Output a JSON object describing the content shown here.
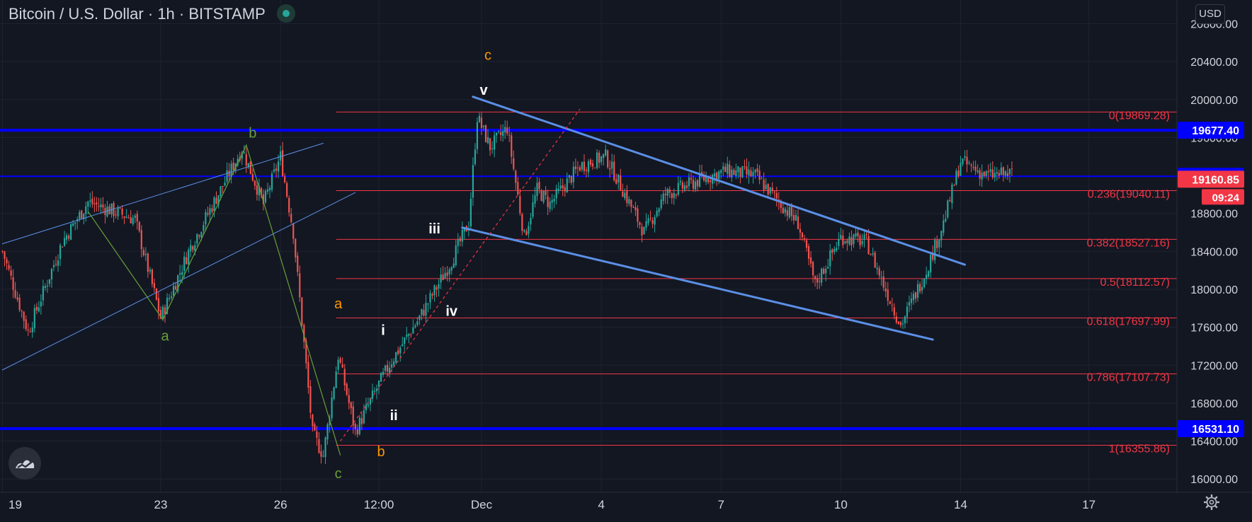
{
  "header": {
    "symbol": "Bitcoin / U.S. Dollar",
    "interval": "1h",
    "exchange": "BITSTAMP",
    "separator": "·"
  },
  "currency_button": "USD",
  "colors": {
    "background": "#131722",
    "grid": "#1f2330",
    "up_candle": "#26a69a",
    "down_candle": "#ef5350",
    "fib_line": "#f23645",
    "horizontal_level": "#0000ff",
    "trendline": "#5b8fe6",
    "orange_label": "#ff9800",
    "green_label": "#689f38",
    "white_label": "#ffffff",
    "last_price_tag": "#f23645",
    "countdown_tag": "#f23645"
  },
  "icons": {
    "logo": "tradingview-logo-icon",
    "settings": "gear-icon",
    "status": "market-status-dot-icon"
  },
  "chart_data": {
    "type": "candlestick",
    "ylim": [
      15860,
      21050
    ],
    "y_ticks": [
      {
        "value": 20800,
        "label": "20800.00"
      },
      {
        "value": 20400,
        "label": "20400.00"
      },
      {
        "value": 20000,
        "label": "20000.00"
      },
      {
        "value": 19600,
        "label": "19600.00"
      },
      {
        "value": 18800,
        "label": "18800.00"
      },
      {
        "value": 18400,
        "label": "18400.00"
      },
      {
        "value": 18000,
        "label": "18000.00"
      },
      {
        "value": 17600,
        "label": "17600.00"
      },
      {
        "value": 17200,
        "label": "17200.00"
      },
      {
        "value": 16800,
        "label": "16800.00"
      },
      {
        "value": 16400,
        "label": "16400.00"
      },
      {
        "value": 16000,
        "label": "16000.00"
      }
    ],
    "x_ticks": [
      {
        "bar": 0,
        "label": "19"
      },
      {
        "bar": 74,
        "label": "23"
      },
      {
        "bar": 130,
        "label": "26"
      },
      {
        "bar": 176,
        "label": "12:00"
      },
      {
        "bar": 224,
        "label": "Dec"
      },
      {
        "bar": 280,
        "label": "4"
      },
      {
        "bar": 336,
        "label": "7"
      },
      {
        "bar": 392,
        "label": "10"
      },
      {
        "bar": 448,
        "label": "14"
      },
      {
        "bar": 508,
        "label": "17"
      }
    ],
    "price_path": [
      [
        0,
        18400
      ],
      [
        12,
        17550
      ],
      [
        28,
        18500
      ],
      [
        40,
        18920
      ],
      [
        62,
        18740
      ],
      [
        74,
        17700
      ],
      [
        88,
        18450
      ],
      [
        112,
        19480
      ],
      [
        122,
        18900
      ],
      [
        130,
        19400
      ],
      [
        136,
        18600
      ],
      [
        145,
        16480
      ],
      [
        150,
        16250
      ],
      [
        157,
        17300
      ],
      [
        165,
        16500
      ],
      [
        176,
        17000
      ],
      [
        182,
        17250
      ],
      [
        195,
        17700
      ],
      [
        210,
        18300
      ],
      [
        218,
        18700
      ],
      [
        222,
        19820
      ],
      [
        228,
        19500
      ],
      [
        236,
        19700
      ],
      [
        244,
        18550
      ],
      [
        250,
        19050
      ],
      [
        256,
        18900
      ],
      [
        270,
        19300
      ],
      [
        282,
        19400
      ],
      [
        290,
        19050
      ],
      [
        300,
        18600
      ],
      [
        310,
        19000
      ],
      [
        326,
        19150
      ],
      [
        338,
        19250
      ],
      [
        352,
        19200
      ],
      [
        362,
        18950
      ],
      [
        372,
        18700
      ],
      [
        380,
        18050
      ],
      [
        392,
        18550
      ],
      [
        404,
        18500
      ],
      [
        412,
        18050
      ],
      [
        420,
        17620
      ],
      [
        432,
        18200
      ],
      [
        440,
        18700
      ],
      [
        448,
        19350
      ],
      [
        460,
        19200
      ],
      [
        472,
        19220
      ]
    ],
    "seed": 7,
    "fibonacci": {
      "start_bar": 156,
      "levels": [
        {
          "ratio": "0",
          "value": 19869.28,
          "label": "0(19869.28)"
        },
        {
          "ratio": "0.236",
          "value": 19040.11,
          "label": "0.236(19040.11)"
        },
        {
          "ratio": "0.382",
          "value": 18527.16,
          "label": "0.382(18527.16)"
        },
        {
          "ratio": "0.5",
          "value": 18112.57,
          "label": "0.5(18112.57)"
        },
        {
          "ratio": "0.618",
          "value": 17697.99,
          "label": "0.618(17697.99)"
        },
        {
          "ratio": "0.786",
          "value": 17107.73,
          "label": "0.786(17107.73)"
        },
        {
          "ratio": "1",
          "value": 16355.86,
          "label": "1(16355.86)"
        }
      ]
    },
    "horizontal_levels": [
      {
        "value": 19677.4,
        "label": "19677.40"
      },
      {
        "value": 19191.08,
        "label": "19191.08"
      },
      {
        "value": 16531.1,
        "label": "16531.10"
      }
    ],
    "last_price": {
      "value": 19160.85,
      "label": "19160.85",
      "countdown": "09:24"
    },
    "trendlines": [
      {
        "name": "upper-channel-line",
        "from": [
          0,
          18480
        ],
        "to": [
          150,
          19540
        ],
        "width": 1
      },
      {
        "name": "lower-channel-line",
        "from": [
          0,
          17150
        ],
        "to": [
          165,
          19020
        ],
        "width": 1
      },
      {
        "name": "upper-wedge-line",
        "from": [
          220,
          20030
        ],
        "to": [
          450,
          18260
        ],
        "width": 3
      },
      {
        "name": "lower-wedge-line",
        "from": [
          215,
          18650
        ],
        "to": [
          435,
          17470
        ],
        "width": 3
      }
    ],
    "wave_paths": [
      {
        "name": "abc-wave-path",
        "color": "#689f38",
        "points": [
          [
            40,
            18820
          ],
          [
            75,
            17680
          ],
          [
            114,
            19520
          ],
          [
            158,
            16250
          ]
        ]
      },
      {
        "name": "impulse-dotted-path",
        "color": "#f23645",
        "dashed": true,
        "points": [
          [
            158,
            16400
          ],
          [
            270,
            19900
          ]
        ]
      }
    ],
    "wave_labels": [
      {
        "text": "b",
        "bar": 117,
        "value": 19600,
        "color": "#689f38"
      },
      {
        "text": "a",
        "bar": 76,
        "value": 17460,
        "color": "#689f38"
      },
      {
        "text": "c",
        "bar": 157,
        "value": 16010,
        "color": "#689f38"
      },
      {
        "text": "c",
        "bar": 227,
        "value": 20420,
        "color": "#ff9800"
      },
      {
        "text": "a",
        "bar": 157,
        "value": 17800,
        "color": "#ff9800"
      },
      {
        "text": "b",
        "bar": 177,
        "value": 16240,
        "color": "#ff9800"
      },
      {
        "text": "v",
        "bar": 225,
        "value": 20050,
        "color": "#ffffff"
      },
      {
        "text": "iii",
        "bar": 202,
        "value": 18590,
        "color": "#ffffff"
      },
      {
        "text": "iv",
        "bar": 210,
        "value": 17720,
        "color": "#ffffff"
      },
      {
        "text": "i",
        "bar": 178,
        "value": 17520,
        "color": "#ffffff"
      },
      {
        "text": "ii",
        "bar": 183,
        "value": 16620,
        "color": "#ffffff"
      }
    ]
  }
}
